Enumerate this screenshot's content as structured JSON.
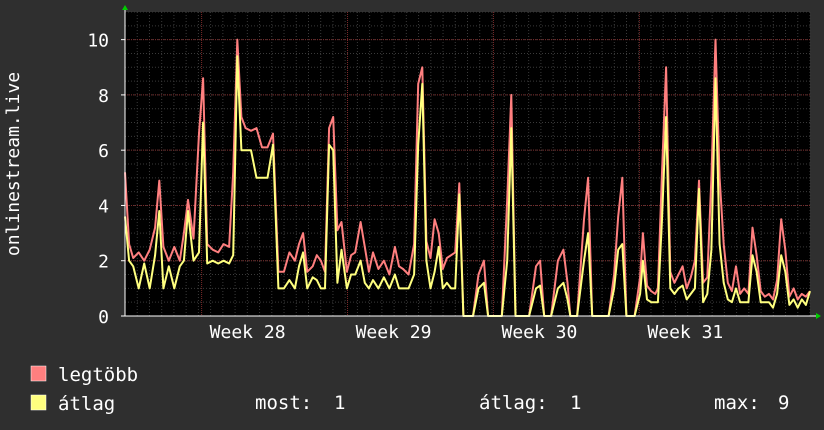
{
  "chart_data": {
    "type": "line",
    "ylabel": "onlinestream.live",
    "ylim": [
      0,
      11
    ],
    "yticks": [
      0,
      2,
      4,
      6,
      8,
      10
    ],
    "xlim": [
      0,
      100
    ],
    "xticks": [
      {
        "label": "Week 28",
        "x": 17.9
      },
      {
        "label": "Week 29",
        "x": 39.2
      },
      {
        "label": "Week 30",
        "x": 60.5
      },
      {
        "label": "Week 31",
        "x": 81.8
      }
    ],
    "grid": true,
    "colors": {
      "background": "#2f2f2f",
      "plot_background": "#000000",
      "grid_minor": "#3a3a3a",
      "grid_major": "#7a2a2a",
      "axis": "#ffffff",
      "arrow": "#00cc00",
      "series_max": "#ff7f7f",
      "series_avg": "#ffff7f"
    },
    "series": [
      {
        "name": "legtöbb",
        "color": "#ff7f7f",
        "points": [
          [
            0,
            5.2
          ],
          [
            0.6,
            2.6
          ],
          [
            1.2,
            2.1
          ],
          [
            2,
            2.3
          ],
          [
            2.8,
            2.0
          ],
          [
            3.6,
            2.4
          ],
          [
            4.4,
            3.2
          ],
          [
            5,
            4.9
          ],
          [
            5.6,
            2.5
          ],
          [
            6.4,
            2.0
          ],
          [
            7.2,
            2.5
          ],
          [
            8,
            2.0
          ],
          [
            8.6,
            3.0
          ],
          [
            9.2,
            4.2
          ],
          [
            10,
            2.8
          ],
          [
            10.8,
            6.6
          ],
          [
            11.4,
            8.6
          ],
          [
            12,
            2.6
          ],
          [
            12.8,
            2.4
          ],
          [
            13.6,
            2.3
          ],
          [
            14.4,
            2.6
          ],
          [
            15.2,
            2.5
          ],
          [
            15.8,
            5.2
          ],
          [
            16.4,
            10.0
          ],
          [
            17,
            7.2
          ],
          [
            17.6,
            6.8
          ],
          [
            18.4,
            6.7
          ],
          [
            19.2,
            6.8
          ],
          [
            20,
            6.1
          ],
          [
            20.8,
            6.1
          ],
          [
            21.6,
            6.6
          ],
          [
            22.4,
            1.6
          ],
          [
            23.2,
            1.6
          ],
          [
            24,
            2.3
          ],
          [
            24.8,
            2.0
          ],
          [
            25.4,
            2.6
          ],
          [
            26,
            3.0
          ],
          [
            26.6,
            1.6
          ],
          [
            27.4,
            1.8
          ],
          [
            28,
            2.2
          ],
          [
            28.6,
            2.0
          ],
          [
            29.2,
            1.6
          ],
          [
            29.8,
            6.8
          ],
          [
            30.4,
            7.2
          ],
          [
            31,
            3.1
          ],
          [
            31.6,
            3.4
          ],
          [
            32.4,
            1.6
          ],
          [
            33,
            2.2
          ],
          [
            33.6,
            2.3
          ],
          [
            34.4,
            3.4
          ],
          [
            35,
            2.5
          ],
          [
            35.6,
            1.6
          ],
          [
            36.2,
            2.3
          ],
          [
            37,
            1.7
          ],
          [
            37.8,
            2.0
          ],
          [
            38.6,
            1.5
          ],
          [
            39.4,
            2.5
          ],
          [
            40,
            1.8
          ],
          [
            40.6,
            1.7
          ],
          [
            41.4,
            1.5
          ],
          [
            42.2,
            2.6
          ],
          [
            42.8,
            8.4
          ],
          [
            43.4,
            9.0
          ],
          [
            44,
            2.7
          ],
          [
            44.6,
            2.1
          ],
          [
            45.2,
            3.5
          ],
          [
            45.8,
            3.0
          ],
          [
            46.4,
            1.7
          ],
          [
            47,
            2.1
          ],
          [
            47.6,
            2.2
          ],
          [
            48.2,
            2.3
          ],
          [
            48.8,
            4.8
          ],
          [
            49.4,
            0
          ],
          [
            50.8,
            0
          ],
          [
            51.6,
            1.5
          ],
          [
            52.4,
            2.0
          ],
          [
            53,
            0
          ],
          [
            55,
            0
          ],
          [
            55.8,
            4.2
          ],
          [
            56.4,
            8.0
          ],
          [
            57,
            0
          ],
          [
            59,
            0
          ],
          [
            60,
            1.8
          ],
          [
            60.6,
            2.0
          ],
          [
            61.2,
            0
          ],
          [
            62.2,
            0
          ],
          [
            63.2,
            2.0
          ],
          [
            64,
            2.4
          ],
          [
            64.6,
            1.2
          ],
          [
            65,
            0
          ],
          [
            66,
            0
          ],
          [
            67,
            3.5
          ],
          [
            67.6,
            5.0
          ],
          [
            68.2,
            0
          ],
          [
            70.6,
            0
          ],
          [
            71.4,
            1.5
          ],
          [
            72,
            3.6
          ],
          [
            72.6,
            5.0
          ],
          [
            73.2,
            0
          ],
          [
            74.4,
            0
          ],
          [
            75.2,
            1.4
          ],
          [
            75.6,
            3.0
          ],
          [
            76.2,
            1.1
          ],
          [
            76.8,
            0.9
          ],
          [
            77.4,
            0.8
          ],
          [
            77.8,
            1.0
          ],
          [
            78.4,
            5.2
          ],
          [
            79,
            9.0
          ],
          [
            79.6,
            1.6
          ],
          [
            80.2,
            1.2
          ],
          [
            80.8,
            1.5
          ],
          [
            81.4,
            1.8
          ],
          [
            82,
            1.0
          ],
          [
            82.6,
            1.4
          ],
          [
            83.2,
            2.0
          ],
          [
            83.8,
            4.9
          ],
          [
            84.4,
            1.2
          ],
          [
            85,
            1.4
          ],
          [
            85.6,
            5.0
          ],
          [
            86.2,
            10.0
          ],
          [
            86.8,
            5.0
          ],
          [
            87.4,
            2.6
          ],
          [
            88,
            1.2
          ],
          [
            88.6,
            0.9
          ],
          [
            89.2,
            1.8
          ],
          [
            89.8,
            0.8
          ],
          [
            90.4,
            1.0
          ],
          [
            91,
            0.8
          ],
          [
            91.6,
            3.2
          ],
          [
            92.2,
            2.2
          ],
          [
            92.8,
            0.9
          ],
          [
            93.4,
            0.7
          ],
          [
            94,
            0.8
          ],
          [
            94.6,
            0.6
          ],
          [
            95.2,
            1.3
          ],
          [
            95.8,
            3.5
          ],
          [
            96.4,
            2.4
          ],
          [
            97,
            0.7
          ],
          [
            97.6,
            1.0
          ],
          [
            98.2,
            0.6
          ],
          [
            98.8,
            0.8
          ],
          [
            99.4,
            0.7
          ],
          [
            100,
            0.9
          ]
        ]
      },
      {
        "name": "átlag",
        "color": "#ffff7f",
        "points": [
          [
            0,
            3.6
          ],
          [
            0.6,
            2.0
          ],
          [
            1.2,
            1.8
          ],
          [
            2,
            1.0
          ],
          [
            2.8,
            1.9
          ],
          [
            3.6,
            1.0
          ],
          [
            4.4,
            2.2
          ],
          [
            5,
            3.8
          ],
          [
            5.6,
            1.0
          ],
          [
            6.4,
            1.8
          ],
          [
            7.2,
            1.0
          ],
          [
            8,
            1.8
          ],
          [
            8.6,
            2.0
          ],
          [
            9.2,
            3.8
          ],
          [
            10,
            2.0
          ],
          [
            10.8,
            2.3
          ],
          [
            11.4,
            7.0
          ],
          [
            12,
            1.9
          ],
          [
            12.8,
            2.0
          ],
          [
            13.6,
            1.9
          ],
          [
            14.4,
            2.0
          ],
          [
            15.2,
            1.9
          ],
          [
            15.8,
            2.2
          ],
          [
            16.4,
            9.4
          ],
          [
            17,
            6.0
          ],
          [
            17.6,
            6.0
          ],
          [
            18.4,
            6.0
          ],
          [
            19.2,
            5.0
          ],
          [
            20,
            5.0
          ],
          [
            20.8,
            5.0
          ],
          [
            21.6,
            6.2
          ],
          [
            22.4,
            1.0
          ],
          [
            23.2,
            1.0
          ],
          [
            24,
            1.3
          ],
          [
            24.8,
            1.0
          ],
          [
            25.4,
            1.8
          ],
          [
            26,
            2.3
          ],
          [
            26.6,
            1.0
          ],
          [
            27.4,
            1.4
          ],
          [
            28,
            1.3
          ],
          [
            28.6,
            1.0
          ],
          [
            29.2,
            1.0
          ],
          [
            29.8,
            6.2
          ],
          [
            30.4,
            6.0
          ],
          [
            31,
            1.2
          ],
          [
            31.6,
            2.4
          ],
          [
            32.4,
            1.0
          ],
          [
            33,
            1.5
          ],
          [
            33.6,
            1.5
          ],
          [
            34.4,
            2.0
          ],
          [
            35,
            1.2
          ],
          [
            35.6,
            1.0
          ],
          [
            36.2,
            1.3
          ],
          [
            37,
            1.0
          ],
          [
            37.8,
            1.4
          ],
          [
            38.6,
            1.0
          ],
          [
            39.4,
            1.5
          ],
          [
            40,
            1.0
          ],
          [
            40.6,
            1.0
          ],
          [
            41.4,
            1.0
          ],
          [
            42.2,
            1.5
          ],
          [
            42.8,
            6.2
          ],
          [
            43.4,
            8.4
          ],
          [
            44,
            2.0
          ],
          [
            44.6,
            1.0
          ],
          [
            45.2,
            1.6
          ],
          [
            45.8,
            2.5
          ],
          [
            46.4,
            1.0
          ],
          [
            47,
            1.2
          ],
          [
            47.6,
            1.0
          ],
          [
            48.2,
            1.0
          ],
          [
            48.8,
            4.4
          ],
          [
            49.4,
            0
          ],
          [
            50.8,
            0
          ],
          [
            51.6,
            1.0
          ],
          [
            52.4,
            1.2
          ],
          [
            53,
            0
          ],
          [
            55,
            0
          ],
          [
            55.8,
            2.0
          ],
          [
            56.4,
            6.8
          ],
          [
            57,
            0
          ],
          [
            59,
            0
          ],
          [
            60,
            1.0
          ],
          [
            60.6,
            1.1
          ],
          [
            61.2,
            0
          ],
          [
            62.2,
            0
          ],
          [
            63.2,
            1.0
          ],
          [
            64,
            1.2
          ],
          [
            64.6,
            0.6
          ],
          [
            65,
            0
          ],
          [
            66,
            0
          ],
          [
            67,
            2.0
          ],
          [
            67.6,
            3.0
          ],
          [
            68.2,
            0
          ],
          [
            70.6,
            0
          ],
          [
            71.4,
            1.0
          ],
          [
            72,
            2.4
          ],
          [
            72.6,
            2.6
          ],
          [
            73.2,
            0
          ],
          [
            74.4,
            0
          ],
          [
            75.2,
            0.8
          ],
          [
            75.6,
            2.0
          ],
          [
            76.2,
            0.6
          ],
          [
            76.8,
            0.5
          ],
          [
            77.4,
            0.5
          ],
          [
            77.8,
            0.5
          ],
          [
            78.4,
            3.5
          ],
          [
            79,
            7.2
          ],
          [
            79.6,
            1.0
          ],
          [
            80.2,
            0.8
          ],
          [
            80.8,
            1.0
          ],
          [
            81.4,
            1.1
          ],
          [
            82,
            0.6
          ],
          [
            82.6,
            0.8
          ],
          [
            83.2,
            1.0
          ],
          [
            83.8,
            4.6
          ],
          [
            84.4,
            0.5
          ],
          [
            85,
            0.8
          ],
          [
            85.6,
            2.4
          ],
          [
            86.2,
            8.6
          ],
          [
            86.8,
            2.6
          ],
          [
            87.4,
            1.2
          ],
          [
            88,
            0.6
          ],
          [
            88.6,
            0.5
          ],
          [
            89.2,
            1.0
          ],
          [
            89.8,
            0.5
          ],
          [
            90.4,
            0.5
          ],
          [
            91,
            0.5
          ],
          [
            91.6,
            2.2
          ],
          [
            92.2,
            1.6
          ],
          [
            92.8,
            0.5
          ],
          [
            93.4,
            0.5
          ],
          [
            94,
            0.5
          ],
          [
            94.6,
            0.3
          ],
          [
            95.2,
            0.8
          ],
          [
            95.8,
            2.2
          ],
          [
            96.4,
            1.6
          ],
          [
            97,
            0.4
          ],
          [
            97.6,
            0.6
          ],
          [
            98.2,
            0.3
          ],
          [
            98.8,
            0.6
          ],
          [
            99.4,
            0.4
          ],
          [
            100,
            0.9
          ]
        ]
      }
    ],
    "legend": [
      {
        "label": "legtöbb",
        "color": "#ff7f7f"
      },
      {
        "label": "átlag",
        "color": "#ffff7f"
      }
    ],
    "stats": {
      "current_label": "most:",
      "current_value": "1",
      "average_label": "átlag:",
      "average_value": "1",
      "max_label": "max:",
      "max_value": "9"
    }
  }
}
